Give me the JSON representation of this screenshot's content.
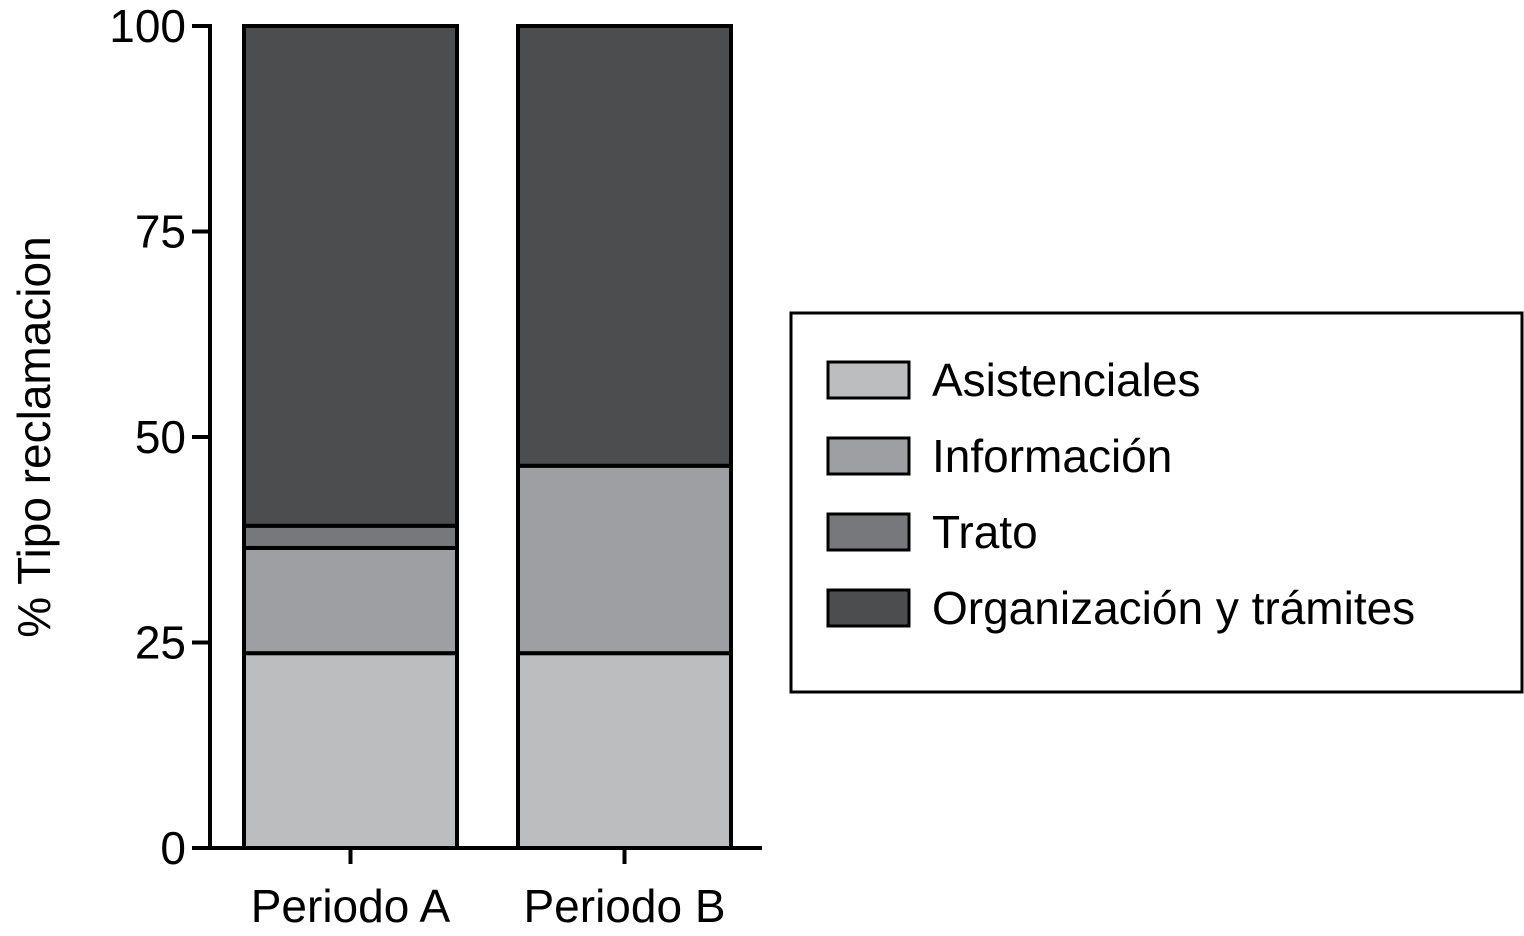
{
  "chart_data": {
    "type": "bar",
    "stacked": true,
    "title": "",
    "xlabel": "",
    "ylabel": "% Tipo reclamacion",
    "ylim": [
      0,
      100
    ],
    "yticks": [
      "0",
      "25",
      "50",
      "75",
      "100"
    ],
    "categories": [
      "Periodo A",
      "Periodo B"
    ],
    "series": [
      {
        "name": "Asistenciales",
        "values": [
          23.7,
          23.7
        ],
        "color": "#bcbdbf"
      },
      {
        "name": "Información",
        "values": [
          12.8,
          22.8
        ],
        "color": "#9e9fa2"
      },
      {
        "name": "Trato",
        "values": [
          2.7,
          0.0
        ],
        "color": "#77787b"
      },
      {
        "name": "Organización y trámites",
        "values": [
          60.8,
          53.5
        ],
        "color": "#4c4d4f"
      }
    ],
    "grid": false,
    "legend_position": "right"
  }
}
